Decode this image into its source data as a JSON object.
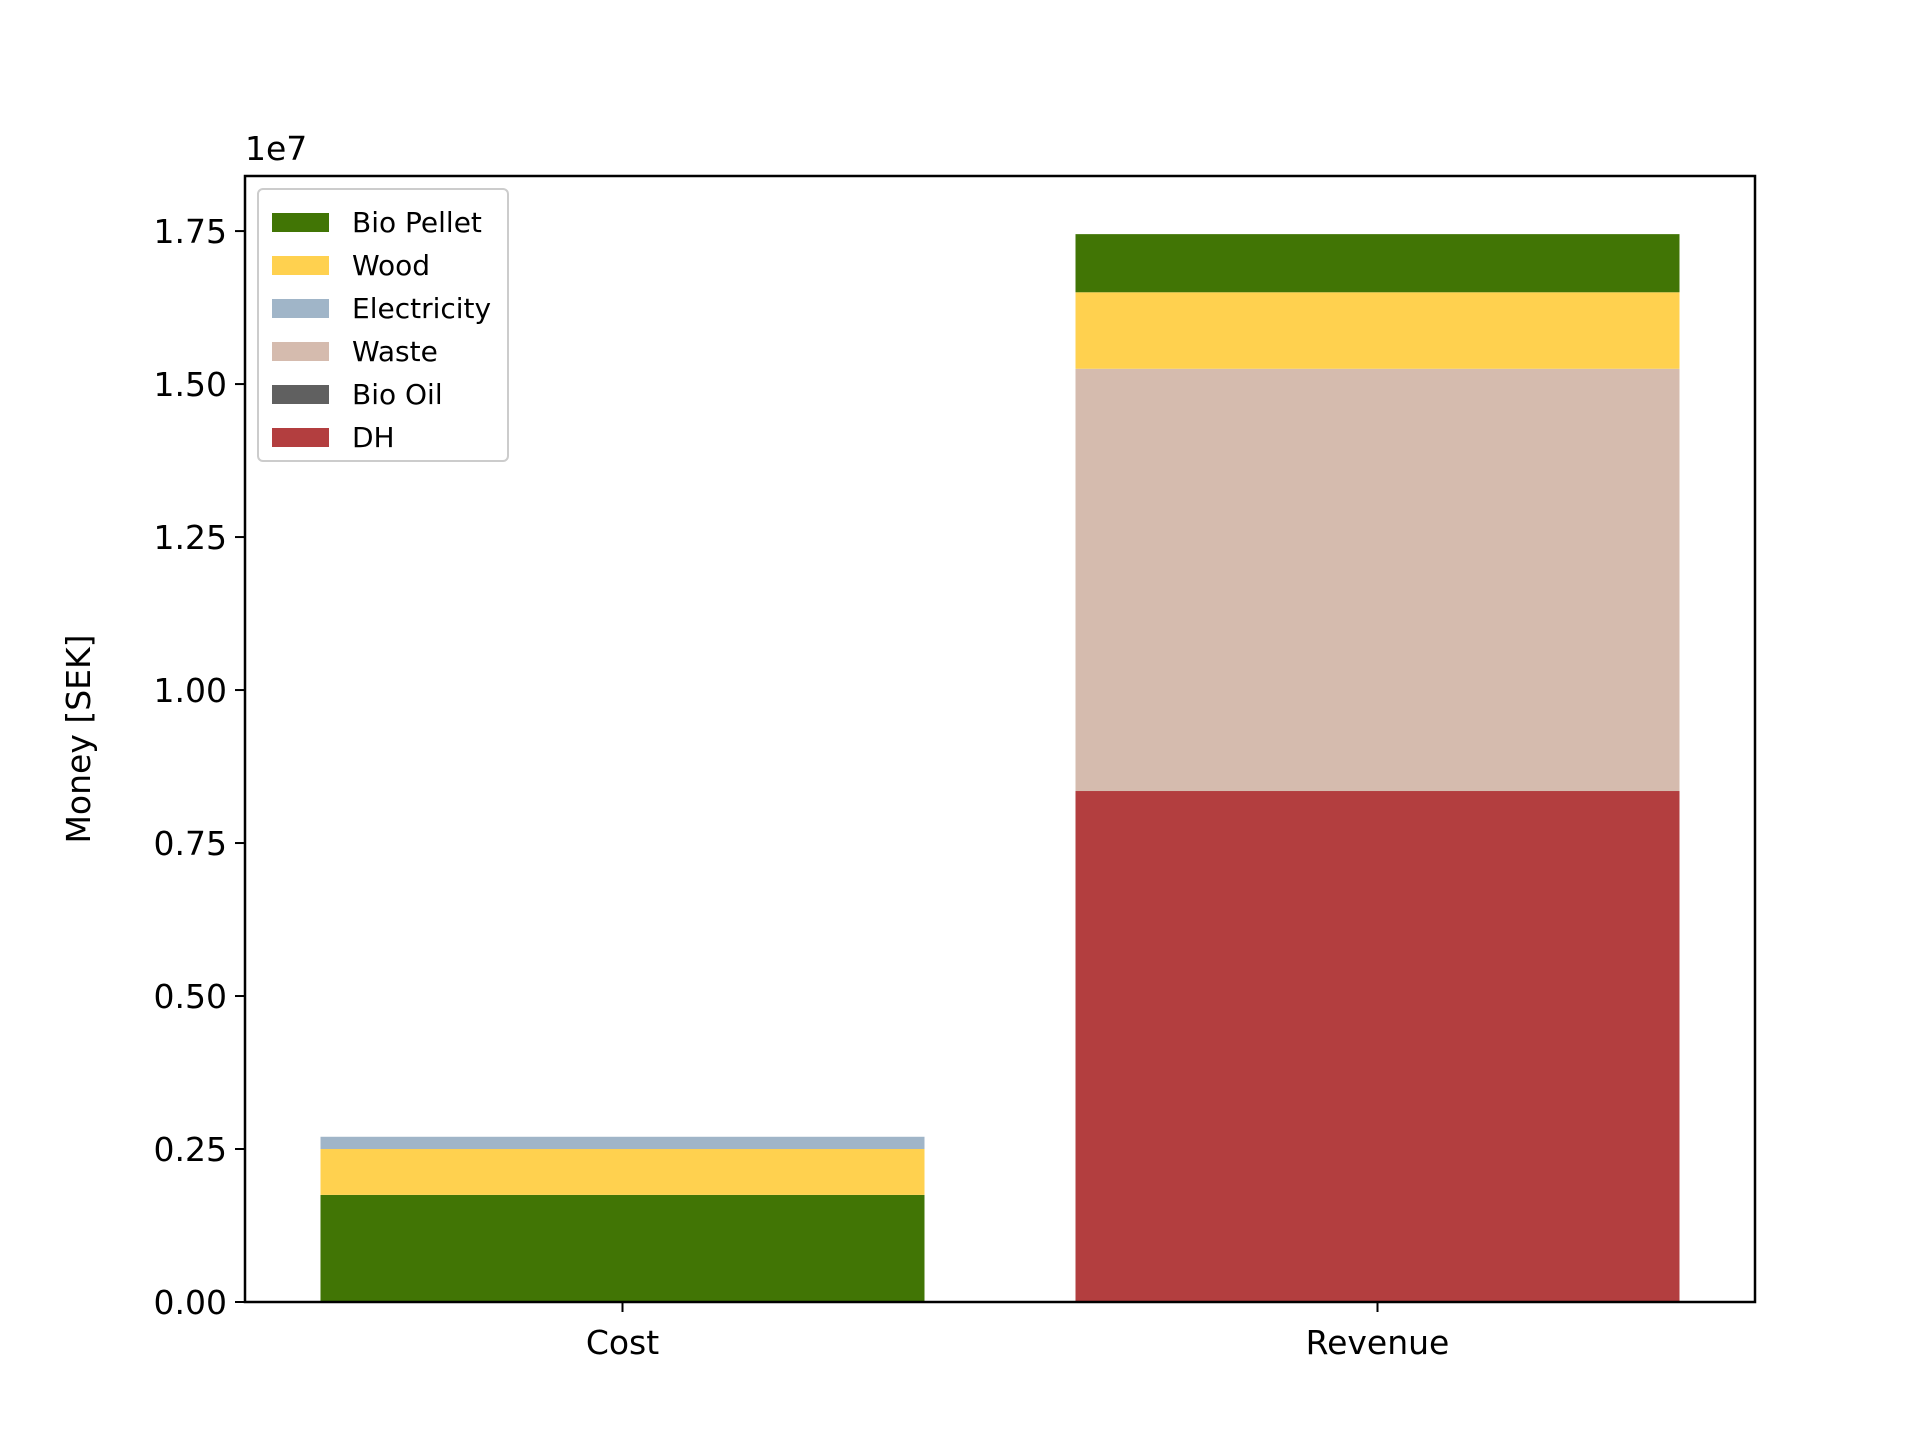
{
  "chart_data": {
    "type": "bar",
    "stacked": true,
    "title": "",
    "xlabel": "",
    "ylabel": "Money [SEK]",
    "y_offset_text": "1e7",
    "y_scale_factor": 10000000,
    "categories": [
      "Cost",
      "Revenue"
    ],
    "ylim": [
      0,
      18400000
    ],
    "yticks": [
      0,
      2500000,
      5000000,
      7500000,
      10000000,
      12500000,
      15000000,
      17500000
    ],
    "ytick_labels": [
      "0.00",
      "0.25",
      "0.50",
      "0.75",
      "1.00",
      "1.25",
      "1.50",
      "1.75"
    ],
    "grid": false,
    "legend_position": "top-left",
    "series": [
      {
        "name": "DH",
        "color": "#b33e3f",
        "values": [
          0,
          8350000
        ]
      },
      {
        "name": "Bio Oil",
        "color": "#606060",
        "values": [
          0,
          0
        ]
      },
      {
        "name": "Waste",
        "color": "#d5bbae",
        "values": [
          0,
          6900000
        ]
      },
      {
        "name": "Electricity",
        "color": "#a0b5c8",
        "values": [
          200000,
          0
        ]
      },
      {
        "name": "Wood",
        "color": "#ffd14f",
        "values": [
          750000,
          1250000
        ]
      },
      {
        "name": "Bio Pellet",
        "color": "#417505",
        "values": [
          1750000,
          950000
        ]
      }
    ],
    "legend_order": [
      "Bio Pellet",
      "Wood",
      "Electricity",
      "Waste",
      "Bio Oil",
      "DH"
    ],
    "stack_order_bottom_to_top": [
      [
        "Bio Pellet",
        "Wood",
        "Electricity"
      ],
      [
        "DH",
        "Waste",
        "Wood",
        "Bio Pellet"
      ]
    ]
  }
}
